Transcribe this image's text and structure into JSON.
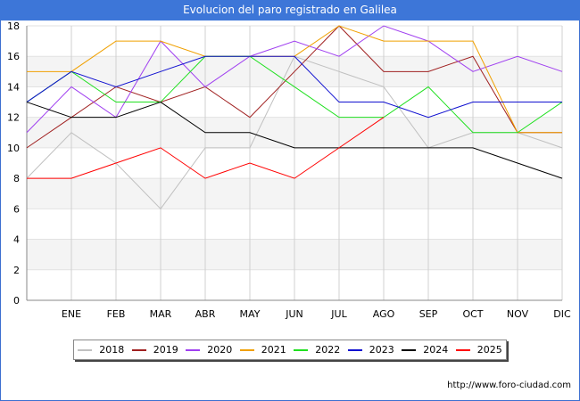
{
  "header": {
    "title": "Evolucion del paro registrado en Galilea"
  },
  "footer": {
    "source": "http://www.foro-ciudad.com"
  },
  "chart_data": {
    "type": "line",
    "title": "Evolucion del paro registrado en Galilea",
    "categories": [
      "",
      "ENE",
      "FEB",
      "MAR",
      "ABR",
      "MAY",
      "JUN",
      "JUL",
      "AGO",
      "SEP",
      "OCT",
      "NOV",
      "DIC"
    ],
    "ylim": [
      0,
      18
    ],
    "yticks": [
      0,
      2,
      4,
      6,
      8,
      10,
      12,
      14,
      16,
      18
    ],
    "grid": true,
    "legend_position": "bottom",
    "series": [
      {
        "name": "2018",
        "color": "#c0c0c0",
        "values": [
          8,
          11,
          9,
          6,
          10,
          10,
          16,
          15,
          14,
          10,
          11,
          11,
          10
        ]
      },
      {
        "name": "2019",
        "color": "#a02020",
        "values": [
          10,
          12,
          14,
          13,
          14,
          12,
          15,
          18,
          15,
          15,
          16,
          11,
          11
        ]
      },
      {
        "name": "2020",
        "color": "#a040f0",
        "values": [
          11,
          14,
          12,
          17,
          14,
          16,
          17,
          16,
          18,
          17,
          15,
          16,
          15
        ]
      },
      {
        "name": "2021",
        "color": "#f0a000",
        "values": [
          15,
          15,
          17,
          17,
          16,
          16,
          16,
          18,
          17,
          17,
          17,
          11,
          11
        ]
      },
      {
        "name": "2022",
        "color": "#20e020",
        "values": [
          13,
          15,
          13,
          13,
          16,
          16,
          14,
          12,
          12,
          14,
          11,
          11,
          13
        ]
      },
      {
        "name": "2023",
        "color": "#1010d0",
        "values": [
          13,
          15,
          14,
          15,
          16,
          16,
          16,
          13,
          13,
          12,
          13,
          13,
          13
        ]
      },
      {
        "name": "2024",
        "color": "#000000",
        "values": [
          13,
          12,
          12,
          13,
          11,
          11,
          10,
          10,
          10,
          10,
          10,
          9,
          8
        ]
      },
      {
        "name": "2025",
        "color": "#ff0000",
        "values": [
          8,
          8,
          9,
          10,
          8,
          9,
          8,
          10,
          12,
          null,
          null,
          null,
          null
        ]
      }
    ]
  }
}
